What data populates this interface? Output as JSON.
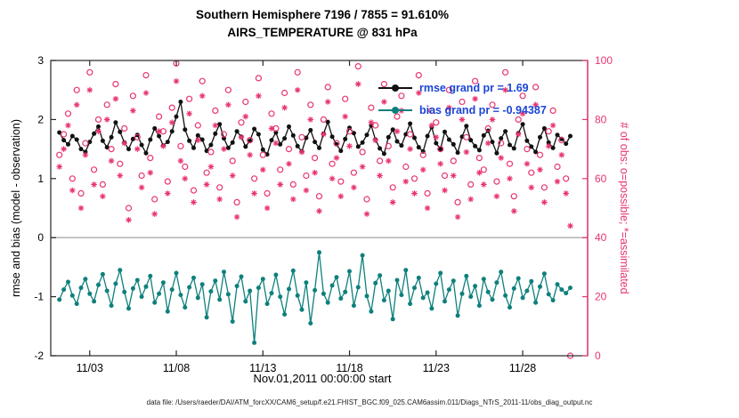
{
  "title_line1": "Southern Hemisphere 7196 / 7855 = 91.610%",
  "title_line2": "AIRS_TEMPERATURE @ 831 hPa",
  "footer": "data file: /Users/raeder/DAI/ATM_forcXX/CAM6_setup/f.e21.FHIST_BGC.f09_025.CAM6assim.011/Diags_NTrS_2011-11/obs_diag_output.nc",
  "colors": {
    "rmse": "#111111",
    "bias": "#0e807c",
    "obs": "#e8356f",
    "legend_text": "#1b45d6",
    "axis": "#262626",
    "zero_line": "#b8b8b8"
  },
  "chart_data": {
    "type": "line",
    "title": "Southern Hemisphere 7196 / 7855 = 91.610% — AIRS_TEMPERATURE @ 831 hPa",
    "xlabel": "Nov.01,2011 00:00:00 start",
    "ylabel_left": "rmse and bias (model - observation)",
    "ylabel_right": "# of obs: o=possible; *=assimilated",
    "xlim": [
      -0.25,
      30.75
    ],
    "ylim_left": [
      -2,
      3
    ],
    "ylim_right": [
      0,
      100
    ],
    "yticks_left": [
      3,
      2,
      1,
      0,
      -1,
      -2
    ],
    "yticks_right": [
      100,
      80,
      60,
      40,
      20,
      0
    ],
    "xtick_days": [
      2,
      7,
      12,
      17,
      22,
      27
    ],
    "xtick_labels": [
      "11/03",
      "11/08",
      "11/13",
      "11/18",
      "11/23",
      "11/28"
    ],
    "x_start": 0.25,
    "x_step": 0.25,
    "legend": [
      {
        "label": "rmse grand pr = 1.69",
        "series": "rmse"
      },
      {
        "label": "bias grand pr = -0.94387",
        "series": "bias"
      }
    ],
    "series": {
      "rmse": [
        1.78,
        1.65,
        1.58,
        1.72,
        1.66,
        1.5,
        1.45,
        1.62,
        1.76,
        1.88,
        1.64,
        1.53,
        1.7,
        1.95,
        1.79,
        1.61,
        1.5,
        1.67,
        1.74,
        1.57,
        1.43,
        1.66,
        1.85,
        1.72,
        1.56,
        1.62,
        1.8,
        2.05,
        2.3,
        1.83,
        1.64,
        1.52,
        1.73,
        1.66,
        1.47,
        1.57,
        1.76,
        1.92,
        1.68,
        1.52,
        1.61,
        1.8,
        1.71,
        1.54,
        1.64,
        1.84,
        1.75,
        1.49,
        1.41,
        1.65,
        1.78,
        1.58,
        1.68,
        1.88,
        1.73,
        1.55,
        1.46,
        1.69,
        1.82,
        1.62,
        1.52,
        1.76,
        1.96,
        1.71,
        1.58,
        1.47,
        1.67,
        1.86,
        1.77,
        1.54,
        1.61,
        1.74,
        1.9,
        1.66,
        1.51,
        1.42,
        1.7,
        1.83,
        1.63,
        1.56,
        1.75,
        1.93,
        1.69,
        1.53,
        1.46,
        1.72,
        1.87,
        1.6,
        1.5,
        1.79,
        1.66,
        1.58,
        1.44,
        1.71,
        1.89,
        1.65,
        1.55,
        1.48,
        1.73,
        1.81,
        1.62,
        1.43,
        1.68,
        1.8,
        1.57,
        1.51,
        1.77,
        1.92,
        1.64,
        1.54,
        1.45,
        1.7,
        1.85,
        1.61,
        1.52,
        1.74,
        1.67,
        1.59,
        1.72
      ],
      "bias": [
        -1.05,
        -0.88,
        -0.75,
        -0.98,
        -1.12,
        -0.85,
        -0.7,
        -0.95,
        -1.08,
        -0.8,
        -0.62,
        -0.9,
        -1.15,
        -0.78,
        -0.55,
        -0.92,
        -1.2,
        -0.86,
        -0.72,
        -1.0,
        -0.83,
        -0.65,
        -1.1,
        -0.95,
        -0.76,
        -1.25,
        -0.88,
        -0.6,
        -0.97,
        -1.18,
        -0.84,
        -0.68,
        -1.02,
        -0.79,
        -1.35,
        -0.91,
        -0.73,
        -1.05,
        -0.58,
        -0.96,
        -1.42,
        -0.82,
        -0.66,
        -1.08,
        -0.9,
        -1.78,
        -0.85,
        -0.7,
        -1.12,
        -0.94,
        -0.63,
        -1.0,
        -1.3,
        -0.87,
        -0.56,
        -0.98,
        -1.22,
        -0.76,
        -1.45,
        -0.89,
        -0.25,
        -0.95,
        -1.1,
        -0.81,
        -0.67,
        -1.03,
        -0.92,
        -0.57,
        -1.15,
        -0.84,
        -0.3,
        -0.99,
        -1.25,
        -0.77,
        -0.64,
        -1.06,
        -0.9,
        -1.38,
        -0.72,
        -0.97,
        -0.55,
        -1.12,
        -0.85,
        -0.68,
        -1.02,
        -0.93,
        -1.2,
        -0.78,
        -0.6,
        -1.08,
        -0.88,
        -0.73,
        -1.32,
        -0.95,
        -0.65,
        -1.0,
        -0.82,
        -1.15,
        -0.7,
        -0.92,
        -1.05,
        -0.76,
        -0.58,
        -0.98,
        -1.18,
        -0.86,
        -0.69,
        -1.02,
        -0.9,
        -0.74,
        -1.1,
        -0.83,
        -0.61,
        -0.96,
        -1.06,
        -0.79,
        -0.88,
        -0.94,
        -0.85
      ],
      "obs_possible": [
        68,
        75,
        82,
        60,
        90,
        55,
        72,
        96,
        63,
        80,
        58,
        85,
        70,
        92,
        65,
        77,
        50,
        88,
        74,
        61,
        95,
        67,
        53,
        81,
        76,
        59,
        84,
        99,
        71,
        64,
        87,
        56,
        78,
        93,
        62,
        69,
        83,
        57,
        75,
        90,
        66,
        52,
        79,
        86,
        73,
        60,
        94,
        68,
        55,
        82,
        77,
        63,
        89,
        70,
        58,
        96,
        74,
        61,
        85,
        67,
        54,
        80,
        91,
        65,
        72,
        59,
        87,
        76,
        62,
        98,
        69,
        53,
        84,
        78,
        66,
        92,
        71,
        57,
        81,
        88,
        64,
        75,
        60,
        95,
        68,
        55,
        83,
        79,
        70,
        61,
        90,
        66,
        52,
        86,
        74,
        58,
        93,
        67,
        63,
        77,
        85,
        59,
        72,
        96,
        65,
        54,
        80,
        88,
        70,
        62,
        91,
        68,
        57,
        76,
        83,
        64,
        73,
        60,
        0
      ],
      "obs_assimilated": [
        64,
        70,
        78,
        56,
        85,
        50,
        68,
        90,
        58,
        76,
        54,
        80,
        66,
        87,
        61,
        72,
        46,
        83,
        70,
        57,
        89,
        62,
        48,
        76,
        71,
        55,
        79,
        93,
        66,
        60,
        82,
        52,
        73,
        88,
        58,
        64,
        78,
        53,
        70,
        85,
        61,
        47,
        74,
        81,
        68,
        55,
        88,
        63,
        50,
        77,
        72,
        58,
        84,
        65,
        53,
        90,
        69,
        56,
        80,
        62,
        49,
        75,
        86,
        60,
        67,
        54,
        81,
        71,
        57,
        92,
        64,
        48,
        79,
        73,
        61,
        86,
        66,
        52,
        76,
        83,
        59,
        70,
        55,
        89,
        63,
        50,
        78,
        74,
        65,
        56,
        84,
        61,
        47,
        80,
        69,
        53,
        87,
        62,
        58,
        72,
        80,
        54,
        67,
        90,
        60,
        49,
        75,
        82,
        65,
        57,
        85,
        63,
        52,
        71,
        78,
        59,
        68,
        55,
        44
      ]
    }
  }
}
